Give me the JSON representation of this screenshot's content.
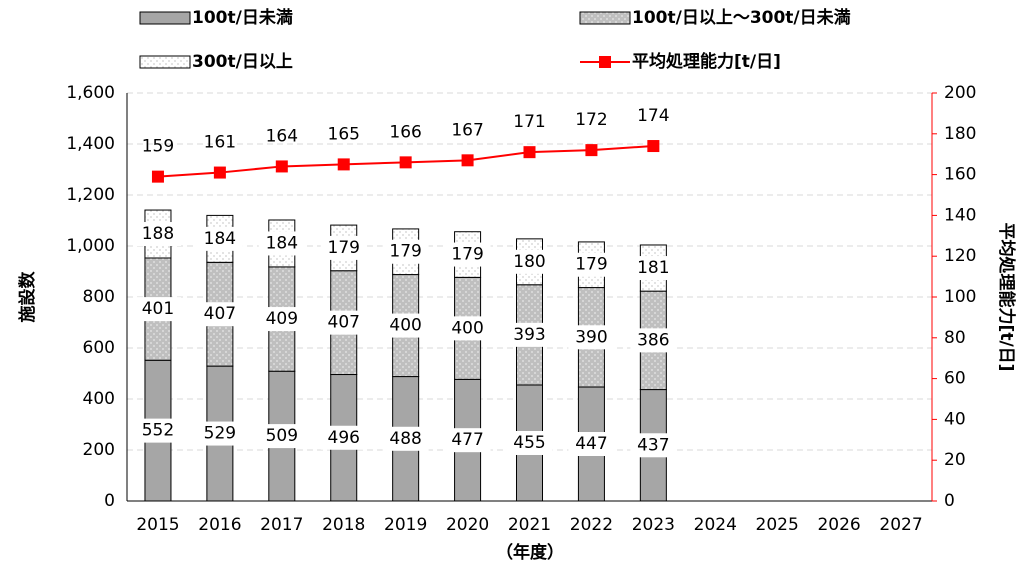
{
  "chart_data": {
    "type": "bar",
    "stacked": true,
    "categories": [
      "2015",
      "2016",
      "2017",
      "2018",
      "2019",
      "2020",
      "2021",
      "2022",
      "2023",
      "2024",
      "2025",
      "2026",
      "2027"
    ],
    "series": [
      {
        "name": "100t/日未満",
        "color": "#a6a6a6",
        "values": [
          552,
          529,
          509,
          496,
          488,
          477,
          455,
          447,
          437,
          null,
          null,
          null,
          null
        ]
      },
      {
        "name": "100t/日以上～300t/日未満",
        "color": "#bfbfbf",
        "values": [
          401,
          407,
          409,
          407,
          400,
          400,
          393,
          390,
          386,
          null,
          null,
          null,
          null
        ]
      },
      {
        "name": "300t/日以上",
        "color": "#ffffff",
        "values": [
          188,
          184,
          184,
          179,
          179,
          179,
          180,
          179,
          181,
          null,
          null,
          null,
          null
        ]
      },
      {
        "name": "平均処理能力[t/日]",
        "type": "line",
        "axis": "y2",
        "color": "#ff0000",
        "values": [
          159,
          161,
          164,
          165,
          166,
          167,
          171,
          172,
          174,
          null,
          null,
          null,
          null
        ]
      }
    ],
    "ylabel": "施設数",
    "y2label": "平均処理能力[t/日]",
    "xlabel": "（年度）",
    "ylim": [
      0,
      1600
    ],
    "yticks": [
      0,
      200,
      400,
      600,
      800,
      {
        "value": 1000,
        "label": "1,000"
      },
      {
        "value": 1200,
        "label": "1,200"
      },
      {
        "value": 1400,
        "label": "1,400"
      },
      {
        "value": 1600,
        "label": "1,600"
      }
    ],
    "y2lim": [
      0,
      200
    ],
    "y2ticks": [
      0,
      20,
      40,
      60,
      80,
      100,
      120,
      140,
      160,
      180,
      200
    ],
    "grid": true
  }
}
